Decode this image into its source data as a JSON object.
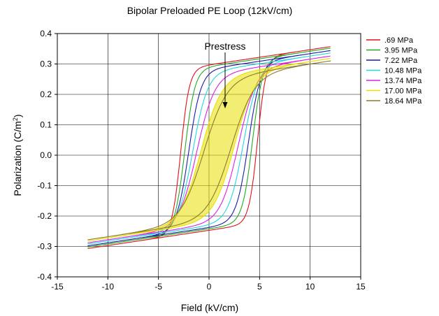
{
  "chart_data": {
    "type": "line",
    "title": "Bipolar Preloaded PE Loop (12kV/cm)",
    "xlabel": "Field (kV/cm)",
    "ylabel_main": "Polarization (C/m",
    "ylabel_sup": "2",
    "ylabel_close": ")",
    "xlim": [
      -15,
      15
    ],
    "ylim": [
      -0.4,
      0.4
    ],
    "xticks": [
      -15,
      -10,
      -5,
      0,
      5,
      10,
      15
    ],
    "xtick_labels": [
      "-15",
      "-10",
      "-5",
      "0",
      "5",
      "10",
      "15"
    ],
    "yticks": [
      -0.4,
      -0.3,
      -0.2,
      -0.1,
      0.0,
      0.1,
      0.2,
      0.3,
      0.4
    ],
    "ytick_labels": [
      "-0.4",
      "-0.3",
      "-0.2",
      "-0.1",
      "0.0",
      "0.1",
      "0.2",
      "0.3",
      "0.4"
    ],
    "grid": true,
    "legend_position": "right",
    "annotation": {
      "text": "Prestress",
      "arrow": "down"
    },
    "series": [
      {
        "name": ".69 MPa",
        "color": "#e0101a",
        "Emax": 12,
        "Pmax": 0.357,
        "Pmin": -0.307,
        "Ec_up": 4.8,
        "Ec_down": -2.8,
        "sharp": 0.85
      },
      {
        "name": "3.95 MPa",
        "color": "#22aa22",
        "Emax": 12,
        "Pmax": 0.352,
        "Pmin": -0.302,
        "Ec_up": 4.3,
        "Ec_down": -2.4,
        "sharp": 1.0
      },
      {
        "name": "7.22 MPa",
        "color": "#1a1aa8",
        "Emax": 12,
        "Pmax": 0.344,
        "Pmin": -0.298,
        "Ec_up": 3.9,
        "Ec_down": -2.0,
        "sharp": 1.2
      },
      {
        "name": "10.48 MPa",
        "color": "#22d6e0",
        "Emax": 12,
        "Pmax": 0.336,
        "Pmin": -0.292,
        "Ec_up": 3.4,
        "Ec_down": -1.6,
        "sharp": 1.45
      },
      {
        "name": "13.74 MPa",
        "color": "#e020e0",
        "Emax": 12,
        "Pmax": 0.326,
        "Pmin": -0.288,
        "Ec_up": 2.9,
        "Ec_down": -1.2,
        "sharp": 1.75
      },
      {
        "name": "17.00 MPa",
        "color": "#e8e000",
        "Emax": 12,
        "Pmax": 0.318,
        "Pmin": -0.282,
        "Ec_up": 2.5,
        "Ec_down": -0.8,
        "sharp": 2.05
      },
      {
        "name": "18.64 MPa",
        "color": "#8c7a2a",
        "Emax": 12,
        "Pmax": 0.31,
        "Pmin": -0.278,
        "Ec_up": 2.2,
        "Ec_down": -0.5,
        "sharp": 2.3
      }
    ]
  }
}
